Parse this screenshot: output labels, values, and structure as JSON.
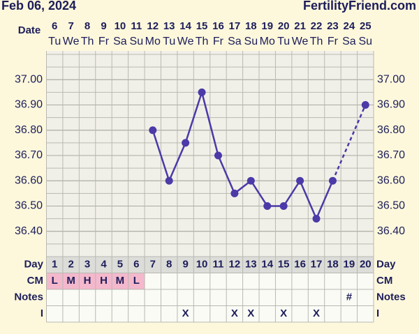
{
  "header": {
    "date": "Feb 06, 2024",
    "site": "FertilityFriend.com"
  },
  "chart_data": {
    "type": "line",
    "x_label": "Date",
    "day_label": "Day",
    "dates": [
      6,
      7,
      8,
      9,
      10,
      11,
      12,
      13,
      14,
      15,
      16,
      17,
      18,
      19,
      20,
      21,
      22,
      23,
      24,
      25
    ],
    "weekdays": [
      "Tu",
      "We",
      "Th",
      "Fr",
      "Sa",
      "Su",
      "Mo",
      "Tu",
      "We",
      "Th",
      "Fr",
      "Sa",
      "Su",
      "Mo",
      "Tu",
      "We",
      "Th",
      "Fr",
      "Sa",
      "Su"
    ],
    "categories": [
      1,
      2,
      3,
      4,
      5,
      6,
      7,
      8,
      9,
      10,
      11,
      12,
      13,
      14,
      15,
      16,
      17,
      18,
      19,
      20
    ],
    "values": [
      null,
      null,
      null,
      null,
      null,
      null,
      36.8,
      36.6,
      36.75,
      36.95,
      36.7,
      36.55,
      36.6,
      36.5,
      36.5,
      36.6,
      36.45,
      36.6,
      null,
      36.9
    ],
    "color": "#4b3aa8",
    "gap_line": "dashed",
    "ylim": [
      36.3,
      37.1
    ],
    "yticks": [
      {
        "value": 36.4,
        "label": "36.40"
      },
      {
        "value": 36.5,
        "label": "36.50"
      },
      {
        "value": 36.6,
        "label": "36.60"
      },
      {
        "value": 36.7,
        "label": "36.70"
      },
      {
        "value": 36.8,
        "label": "36.80"
      },
      {
        "value": 36.9,
        "label": "36.90"
      },
      {
        "value": 37.0,
        "label": "37.00"
      }
    ],
    "grid": true,
    "rows": [
      {
        "label": "CM",
        "values": [
          "L",
          "M",
          "H",
          "H",
          "M",
          "L",
          null,
          null,
          null,
          null,
          null,
          null,
          null,
          null,
          null,
          null,
          null,
          null,
          null,
          null
        ],
        "color": "#f4b8cc"
      },
      {
        "label": "Notes",
        "values": [
          null,
          null,
          null,
          null,
          null,
          null,
          null,
          null,
          null,
          null,
          null,
          null,
          null,
          null,
          null,
          null,
          null,
          null,
          "#",
          null
        ]
      },
      {
        "label": "I",
        "values": [
          null,
          null,
          null,
          null,
          null,
          null,
          null,
          null,
          "X",
          null,
          null,
          "X",
          "X",
          null,
          "X",
          null,
          "X",
          null,
          null,
          null
        ]
      }
    ]
  }
}
